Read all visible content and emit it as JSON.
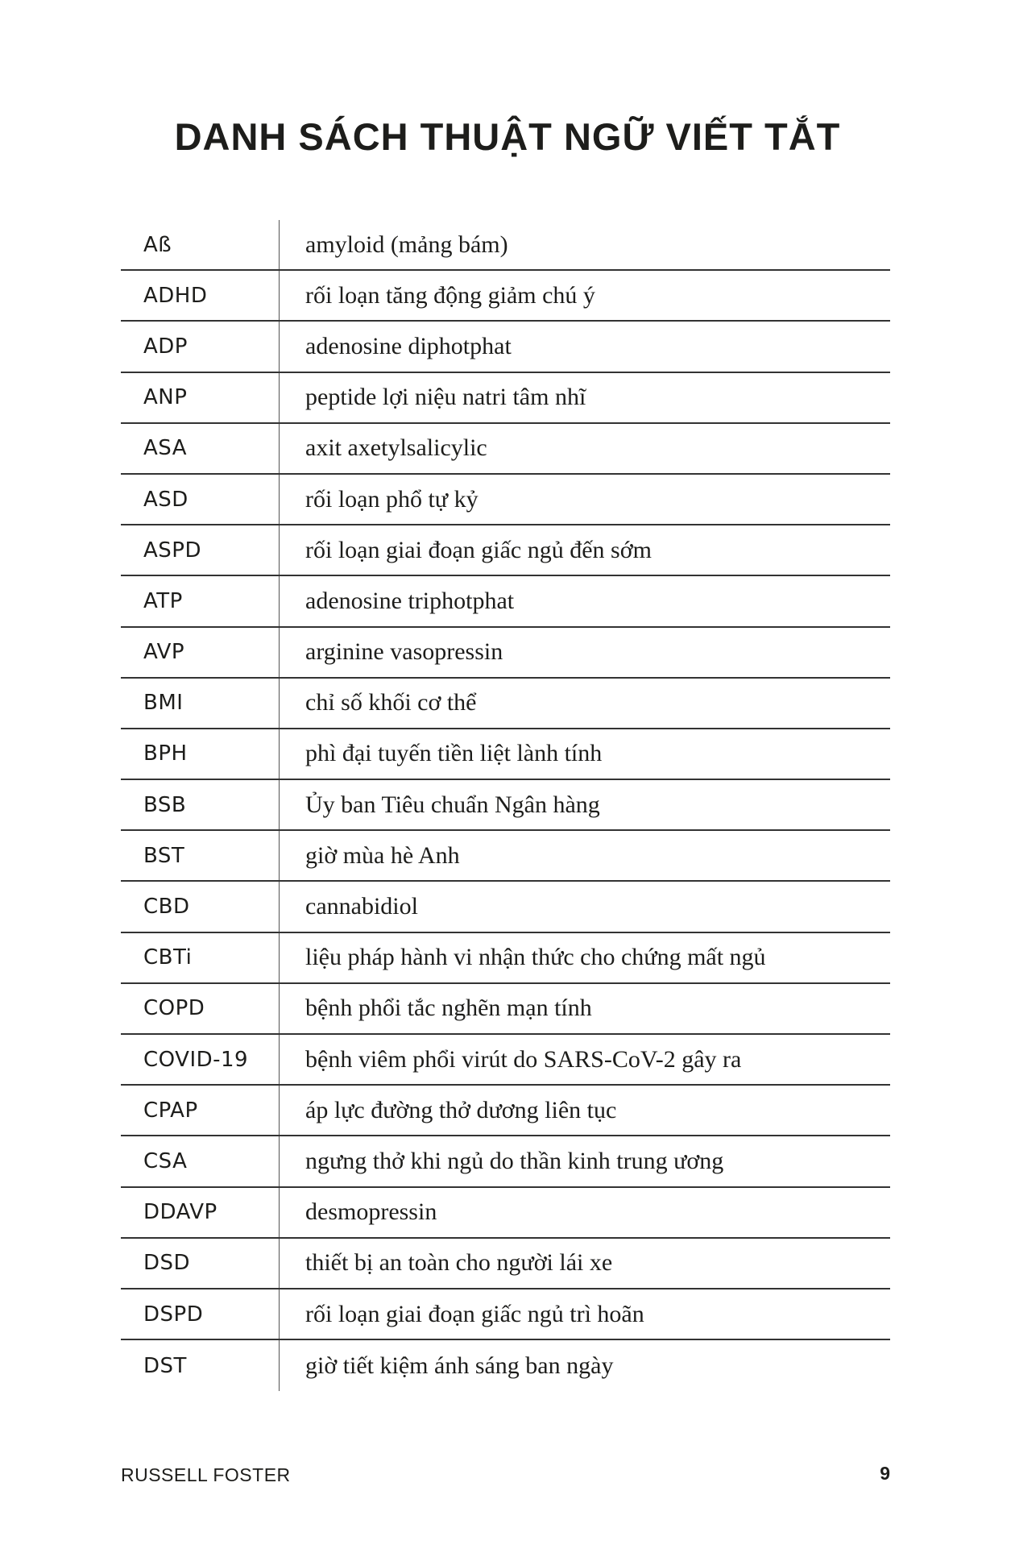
{
  "title": "DANH SÁCH THUẬT NGỮ VIẾT TẮT",
  "rows": [
    {
      "abbr": "Aß",
      "def": "amyloid (mảng bám)"
    },
    {
      "abbr": "ADHD",
      "def": "rối loạn tăng động giảm chú ý"
    },
    {
      "abbr": "ADP",
      "def": "adenosine diphotphat"
    },
    {
      "abbr": "ANP",
      "def": "peptide lợi niệu natri tâm nhĩ"
    },
    {
      "abbr": "ASA",
      "def": "axit axetylsalicylic"
    },
    {
      "abbr": "ASD",
      "def": "rối loạn phổ tự kỷ"
    },
    {
      "abbr": "ASPD",
      "def": "rối loạn giai đoạn giấc ngủ đến sớm"
    },
    {
      "abbr": "ATP",
      "def": "adenosine triphotphat"
    },
    {
      "abbr": "AVP",
      "def": "arginine vasopressin"
    },
    {
      "abbr": "BMI",
      "def": "chỉ số khối cơ thể"
    },
    {
      "abbr": "BPH",
      "def": "phì đại tuyến tiền liệt lành tính"
    },
    {
      "abbr": "BSB",
      "def": "Ủy ban Tiêu chuẩn Ngân hàng"
    },
    {
      "abbr": "BST",
      "def": "giờ mùa hè Anh"
    },
    {
      "abbr": "CBD",
      "def": "cannabidiol"
    },
    {
      "abbr": "CBTi",
      "def": "liệu pháp hành vi nhận thức cho chứng mất ngủ"
    },
    {
      "abbr": "COPD",
      "def": "bệnh phổi tắc nghẽn mạn tính"
    },
    {
      "abbr": "COVID-19",
      "def": "bệnh viêm phổi virút do SARS-CoV-2 gây ra"
    },
    {
      "abbr": "CPAP",
      "def": "áp lực đường thở dương liên tục"
    },
    {
      "abbr": "CSA",
      "def": "ngưng thở khi ngủ do thần kinh trung ương"
    },
    {
      "abbr": "DDAVP",
      "def": "desmopressin"
    },
    {
      "abbr": "DSD",
      "def": "thiết bị an toàn cho người lái xe"
    },
    {
      "abbr": "DSPD",
      "def": "rối loạn giai đoạn giấc ngủ trì hoãn"
    },
    {
      "abbr": "DST",
      "def": "giờ tiết kiệm ánh sáng ban ngày"
    }
  ],
  "footer": {
    "author": "RUSSELL FOSTER",
    "page": "9"
  }
}
